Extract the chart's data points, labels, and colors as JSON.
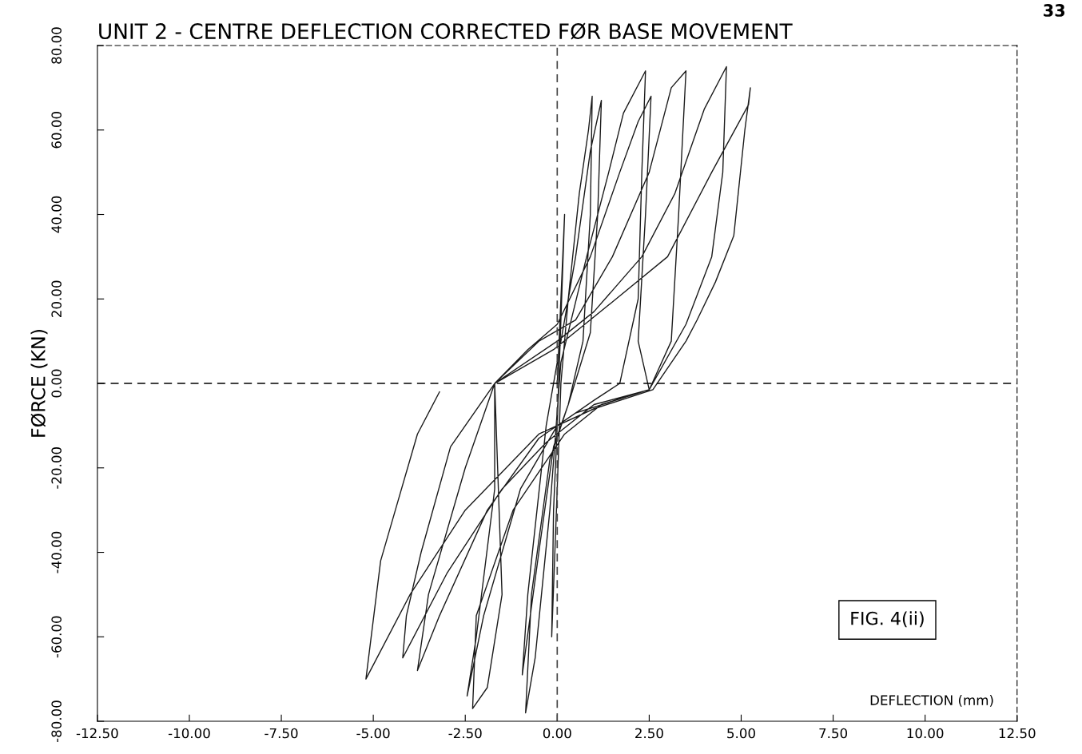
{
  "chart_data": {
    "type": "line",
    "title": "UNIT 2 - CENTRE DEFLECTION CORRECTED FØR BASE MOVEMENT",
    "xlabel": "DEFLECTION (mm)",
    "ylabel": "FØRCE (KN)",
    "annotations": [
      "33",
      "FIG. 4(ii)"
    ],
    "xlim": [
      -12.5,
      12.5
    ],
    "ylim": [
      -80,
      80
    ],
    "xticks": [
      {
        "value": -12.5,
        "label": "-12.50"
      },
      {
        "value": -10,
        "label": "-10.00"
      },
      {
        "value": -7.5,
        "label": "-7.50"
      },
      {
        "value": -5,
        "label": "-5.00"
      },
      {
        "value": -2.5,
        "label": "-2.50"
      },
      {
        "value": 0,
        "label": "0.00"
      },
      {
        "value": 2.5,
        "label": "2.50"
      },
      {
        "value": 5,
        "label": "5.00"
      },
      {
        "value": 7.5,
        "label": "7.50"
      },
      {
        "value": 10,
        "label": "10.00"
      },
      {
        "value": 12.5,
        "label": "12.50"
      }
    ],
    "yticks": [
      {
        "value": -80,
        "label": "-80.00"
      },
      {
        "value": -60,
        "label": "-60.00"
      },
      {
        "value": -40,
        "label": "-40.00"
      },
      {
        "value": -20,
        "label": "-20.00"
      },
      {
        "value": 0,
        "label": "0.00"
      },
      {
        "value": 20,
        "label": "20.00"
      },
      {
        "value": 40,
        "label": "40.00"
      },
      {
        "value": 60,
        "label": "60.00"
      },
      {
        "value": 80,
        "label": "80.00"
      }
    ],
    "grid": false,
    "legend": false,
    "marker": "none",
    "line_style": "solid",
    "ref_lines": [
      {
        "axis": "x",
        "value": 0,
        "label": null,
        "color": "#444444",
        "line_style": "dashed"
      },
      {
        "axis": "y",
        "value": 0,
        "label": null,
        "color": "#000000",
        "line_style": "dashed"
      }
    ],
    "series": [
      {
        "color": "#1a1a1a",
        "x": [
          0,
          0.1,
          0.2,
          0.1,
          0,
          -0.1,
          -0.15,
          0,
          0.1,
          0.3,
          0.6,
          0.85,
          0.95,
          0.9,
          0.7,
          0.3,
          -0.1,
          -0.5,
          -0.95,
          -0.8,
          -0.3,
          0,
          0.5,
          0.9,
          1.2,
          1.1,
          0.9,
          0.3,
          -0.2,
          -0.7,
          -0.86,
          -0.6,
          -0.2,
          0.1,
          0.8,
          1.4,
          1.8,
          2.4,
          2.3,
          2.2,
          1.7,
          1.0,
          0,
          -1,
          -2,
          -2.45,
          -2.2,
          -1.7,
          -1.7,
          -0.8,
          0,
          0.9,
          1.7,
          2.2,
          2.55,
          2.4,
          2.2,
          2.5,
          1.2,
          0.2,
          -1.2,
          -2.2,
          -2.3,
          -1.9,
          -1.5,
          -1.7,
          -0.5,
          0.5,
          1.5,
          2.5,
          3.1,
          3.5,
          3.3,
          3.1,
          2.5,
          0.5,
          -0.5,
          -1.9,
          -3.2,
          -3.8,
          -3.5,
          -2.5,
          -1.7,
          0,
          1,
          2.3,
          3.2,
          4.0,
          4.6,
          4.5,
          4.2,
          3.5,
          2.5,
          1.0,
          -0.3,
          -1.5,
          -3,
          -4.2,
          -4.1,
          -3.7,
          -2.9,
          -1.7,
          -0.1,
          1.6,
          3.0,
          4.2,
          5.2,
          5.25,
          5.1,
          4.8,
          4.3,
          3.8,
          3.5,
          2.6,
          1.0,
          -0.5,
          -2.5,
          -4,
          -5.2,
          -4.8,
          -4.4,
          -3.8,
          -3.2
        ],
        "values": [
          0,
          20,
          40,
          15,
          -10,
          -30,
          -60,
          -25,
          0,
          20,
          45,
          60,
          68,
          40,
          10,
          -5,
          -15,
          -40,
          -69,
          -50,
          -10,
          5,
          30,
          55,
          67,
          40,
          12,
          -5,
          -18,
          -50,
          -78,
          -65,
          -30,
          5,
          30,
          50,
          64,
          74,
          50,
          20,
          0,
          -4,
          -10,
          -25,
          -55,
          -74,
          -60,
          -25,
          0,
          8,
          14,
          30,
          50,
          62,
          68,
          40,
          10,
          -1.5,
          -5,
          -12,
          -30,
          -55,
          -77,
          -72,
          -50,
          0,
          10,
          15,
          30,
          50,
          70,
          74,
          40,
          10,
          -1.5,
          -7,
          -13,
          -30,
          -55,
          -68,
          -50,
          -20,
          0,
          10,
          17,
          30,
          45,
          65,
          75,
          50,
          30,
          14,
          -1.5,
          -5,
          -14,
          -25,
          -45,
          -65,
          -55,
          -40,
          -15,
          0,
          8,
          20,
          30,
          50,
          66,
          70,
          60,
          35,
          24,
          15,
          10,
          -1.5,
          -6,
          -12,
          -30,
          -50,
          -70,
          -42,
          -30,
          -12,
          -2
        ]
      }
    ]
  }
}
